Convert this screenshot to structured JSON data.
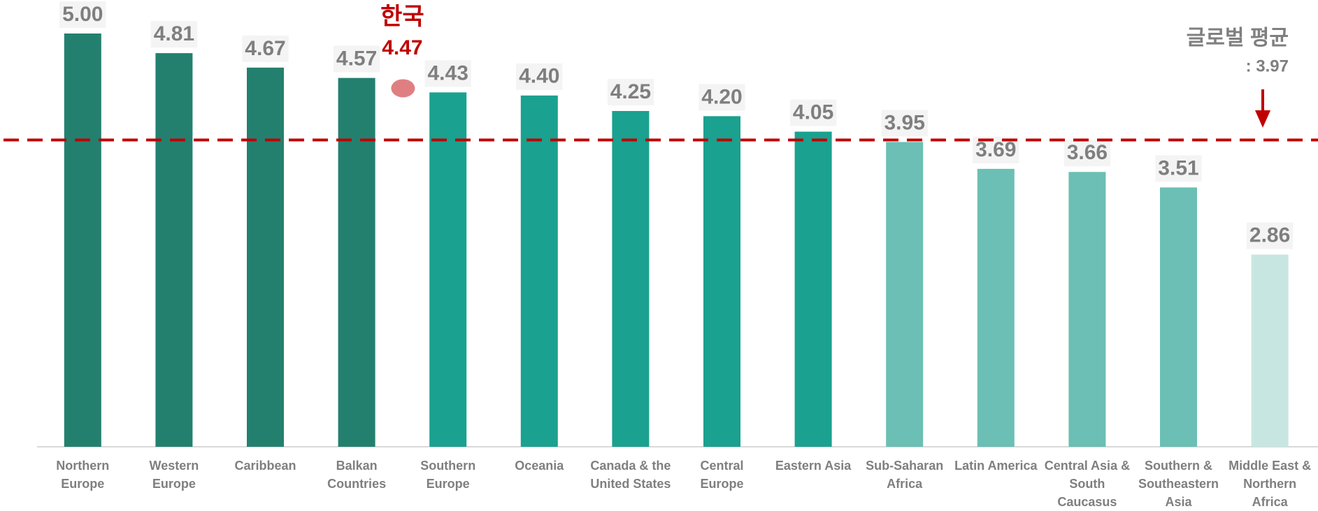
{
  "chart_data": {
    "type": "bar",
    "categories": [
      "Northern Europe",
      "Western Europe",
      "Caribbean",
      "Balkan Countries",
      "Southern Europe",
      "Oceania",
      "Canada & the United States",
      "Central Europe",
      "Eastern Asia",
      "Sub-Saharan Africa",
      "Latin America",
      "Central Asia & South Caucasus",
      "Southern & Southeastern Asia",
      "Middle East & Northern Africa"
    ],
    "values": [
      5.0,
      4.81,
      4.67,
      4.57,
      4.43,
      4.4,
      4.25,
      4.2,
      4.05,
      3.95,
      3.69,
      3.66,
      3.51,
      2.86
    ],
    "value_labels": [
      "5.00",
      "4.81",
      "4.67",
      "4.57",
      "4.43",
      "4.40",
      "4.25",
      "4.20",
      "4.05",
      "3.95",
      "3.69",
      "3.66",
      "3.51",
      "2.86"
    ],
    "colors": [
      "#23806f",
      "#23806f",
      "#23806f",
      "#23806f",
      "#1aa18f",
      "#1aa18f",
      "#1aa18f",
      "#1aa18f",
      "#1aa18f",
      "#6bbfb4",
      "#6bbfb4",
      "#6bbfb4",
      "#6bbfb4",
      "#c8e6e1"
    ],
    "ylim": [
      1,
      5
    ],
    "reference_line": {
      "title": "글로벌 평균",
      "label": ": 3.97",
      "value": 3.97,
      "color": "#c00000"
    },
    "highlight": {
      "label": "한국",
      "value": 4.47,
      "color": "#c00000",
      "dot_color": "#e07f82"
    }
  }
}
